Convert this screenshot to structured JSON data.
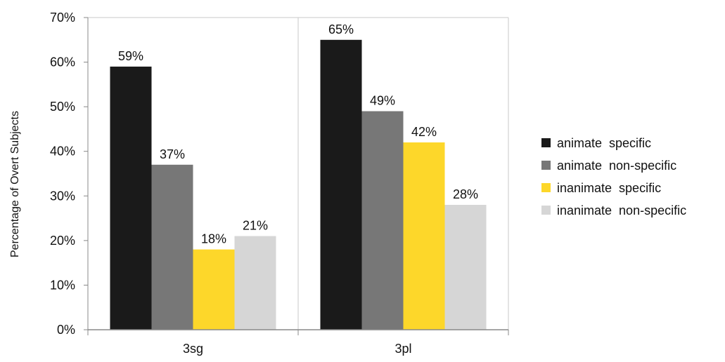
{
  "chart_data": {
    "type": "bar",
    "title": "",
    "xlabel": "",
    "ylabel": "Percentage of Overt Subjects",
    "ylim": [
      0,
      70
    ],
    "y_ticks": [
      0,
      10,
      20,
      30,
      40,
      50,
      60,
      70
    ],
    "y_tick_labels": [
      "0%",
      "10%",
      "20%",
      "30%",
      "40%",
      "50%",
      "60%",
      "70%"
    ],
    "grid": "vertical",
    "legend_position": "right",
    "categories": [
      "3sg",
      "3pl"
    ],
    "series": [
      {
        "name": "animate  specific",
        "color": "#1a1a1a",
        "values": [
          59,
          65
        ],
        "labels": [
          "59%",
          "65%"
        ]
      },
      {
        "name": "animate  non-specific",
        "color": "#777777",
        "values": [
          37,
          49
        ],
        "labels": [
          "37%",
          "49%"
        ]
      },
      {
        "name": "inanimate  specific",
        "color": "#fdd72a",
        "values": [
          18,
          42
        ],
        "labels": [
          "18%",
          "42%"
        ]
      },
      {
        "name": "inanimate  non-specific",
        "color": "#d6d6d6",
        "values": [
          21,
          28
        ],
        "labels": [
          "21%",
          "28%"
        ]
      }
    ]
  }
}
